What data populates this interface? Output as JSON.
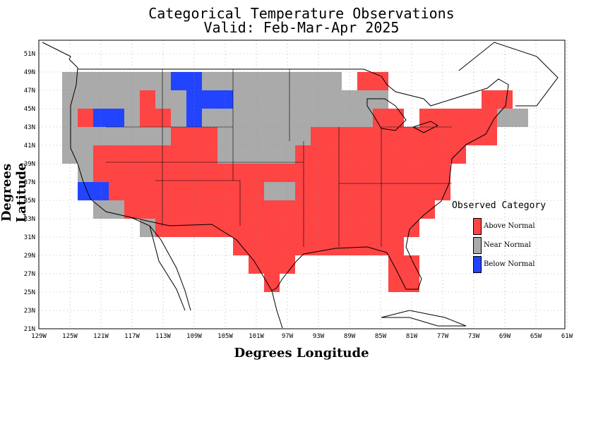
{
  "title": "Categorical Temperature Observations",
  "subtitle": "Valid: Feb-Mar-Apr 2025",
  "chart_data": {
    "type": "heatmap",
    "xlabel": "Degrees Longitude",
    "ylabel": "Degrees Latitude",
    "xlim": [
      -129,
      -61
    ],
    "ylim": [
      21,
      52
    ],
    "grid": true,
    "x_ticks": [
      "129W",
      "125W",
      "121W",
      "117W",
      "113W",
      "109W",
      "105W",
      "101W",
      "97W",
      "93W",
      "89W",
      "85W",
      "81W",
      "77W",
      "73W",
      "69W",
      "65W",
      "61W"
    ],
    "y_ticks": [
      "21N",
      "23N",
      "25N",
      "27N",
      "29N",
      "31N",
      "33N",
      "35N",
      "37N",
      "39N",
      "41N",
      "43N",
      "45N",
      "47N",
      "49N",
      "51N"
    ],
    "cell_size_deg": 2,
    "categories": [
      {
        "code": "A",
        "name": "Above Normal",
        "color": "#ff4444"
      },
      {
        "code": "N",
        "name": "Near Normal",
        "color": "#aaaaaa"
      },
      {
        "code": "B",
        "name": "Below Normal",
        "color": "#2244ff"
      }
    ],
    "cells": [
      {
        "lon": -125,
        "lat": 48,
        "cat": "N"
      },
      {
        "lon": -123,
        "lat": 48,
        "cat": "N"
      },
      {
        "lon": -121,
        "lat": 48,
        "cat": "N"
      },
      {
        "lon": -119,
        "lat": 48,
        "cat": "N"
      },
      {
        "lon": -117,
        "lat": 48,
        "cat": "N"
      },
      {
        "lon": -115,
        "lat": 48,
        "cat": "N"
      },
      {
        "lon": -113,
        "lat": 48,
        "cat": "N"
      },
      {
        "lon": -111,
        "lat": 48,
        "cat": "B"
      },
      {
        "lon": -109,
        "lat": 48,
        "cat": "B"
      },
      {
        "lon": -107,
        "lat": 48,
        "cat": "N"
      },
      {
        "lon": -105,
        "lat": 48,
        "cat": "N"
      },
      {
        "lon": -103,
        "lat": 48,
        "cat": "N"
      },
      {
        "lon": -101,
        "lat": 48,
        "cat": "N"
      },
      {
        "lon": -99,
        "lat": 48,
        "cat": "N"
      },
      {
        "lon": -97,
        "lat": 48,
        "cat": "N"
      },
      {
        "lon": -95,
        "lat": 48,
        "cat": "N"
      },
      {
        "lon": -93,
        "lat": 48,
        "cat": "N"
      },
      {
        "lon": -91,
        "lat": 48,
        "cat": "N"
      },
      {
        "lon": -87,
        "lat": 48,
        "cat": "A"
      },
      {
        "lon": -85,
        "lat": 48,
        "cat": "A"
      },
      {
        "lon": -125,
        "lat": 46,
        "cat": "N"
      },
      {
        "lon": -123,
        "lat": 46,
        "cat": "N"
      },
      {
        "lon": -121,
        "lat": 46,
        "cat": "N"
      },
      {
        "lon": -119,
        "lat": 46,
        "cat": "N"
      },
      {
        "lon": -117,
        "lat": 46,
        "cat": "N"
      },
      {
        "lon": -115,
        "lat": 46,
        "cat": "A"
      },
      {
        "lon": -113,
        "lat": 46,
        "cat": "N"
      },
      {
        "lon": -111,
        "lat": 46,
        "cat": "N"
      },
      {
        "lon": -109,
        "lat": 46,
        "cat": "B"
      },
      {
        "lon": -107,
        "lat": 46,
        "cat": "B"
      },
      {
        "lon": -105,
        "lat": 46,
        "cat": "B"
      },
      {
        "lon": -103,
        "lat": 46,
        "cat": "N"
      },
      {
        "lon": -101,
        "lat": 46,
        "cat": "N"
      },
      {
        "lon": -99,
        "lat": 46,
        "cat": "N"
      },
      {
        "lon": -97,
        "lat": 46,
        "cat": "N"
      },
      {
        "lon": -95,
        "lat": 46,
        "cat": "N"
      },
      {
        "lon": -93,
        "lat": 46,
        "cat": "N"
      },
      {
        "lon": -91,
        "lat": 46,
        "cat": "N"
      },
      {
        "lon": -89,
        "lat": 46,
        "cat": "N"
      },
      {
        "lon": -87,
        "lat": 46,
        "cat": "N"
      },
      {
        "lon": -85,
        "lat": 46,
        "cat": "N"
      },
      {
        "lon": -71,
        "lat": 46,
        "cat": "A"
      },
      {
        "lon": -69,
        "lat": 46,
        "cat": "A"
      },
      {
        "lon": -125,
        "lat": 44,
        "cat": "N"
      },
      {
        "lon": -123,
        "lat": 44,
        "cat": "A"
      },
      {
        "lon": -121,
        "lat": 44,
        "cat": "B"
      },
      {
        "lon": -119,
        "lat": 44,
        "cat": "B"
      },
      {
        "lon": -117,
        "lat": 44,
        "cat": "N"
      },
      {
        "lon": -115,
        "lat": 44,
        "cat": "A"
      },
      {
        "lon": -113,
        "lat": 44,
        "cat": "A"
      },
      {
        "lon": -111,
        "lat": 44,
        "cat": "N"
      },
      {
        "lon": -109,
        "lat": 44,
        "cat": "B"
      },
      {
        "lon": -107,
        "lat": 44,
        "cat": "N"
      },
      {
        "lon": -105,
        "lat": 44,
        "cat": "N"
      },
      {
        "lon": -103,
        "lat": 44,
        "cat": "N"
      },
      {
        "lon": -101,
        "lat": 44,
        "cat": "N"
      },
      {
        "lon": -99,
        "lat": 44,
        "cat": "N"
      },
      {
        "lon": -97,
        "lat": 44,
        "cat": "N"
      },
      {
        "lon": -95,
        "lat": 44,
        "cat": "N"
      },
      {
        "lon": -93,
        "lat": 44,
        "cat": "N"
      },
      {
        "lon": -91,
        "lat": 44,
        "cat": "N"
      },
      {
        "lon": -89,
        "lat": 44,
        "cat": "N"
      },
      {
        "lon": -87,
        "lat": 44,
        "cat": "N"
      },
      {
        "lon": -85,
        "lat": 44,
        "cat": "A"
      },
      {
        "lon": -83,
        "lat": 44,
        "cat": "A"
      },
      {
        "lon": -79,
        "lat": 44,
        "cat": "A"
      },
      {
        "lon": -77,
        "lat": 44,
        "cat": "A"
      },
      {
        "lon": -75,
        "lat": 44,
        "cat": "A"
      },
      {
        "lon": -73,
        "lat": 44,
        "cat": "A"
      },
      {
        "lon": -71,
        "lat": 44,
        "cat": "A"
      },
      {
        "lon": -69,
        "lat": 44,
        "cat": "N"
      },
      {
        "lon": -67,
        "lat": 44,
        "cat": "N"
      },
      {
        "lon": -125,
        "lat": 42,
        "cat": "N"
      },
      {
        "lon": -123,
        "lat": 42,
        "cat": "N"
      },
      {
        "lon": -121,
        "lat": 42,
        "cat": "N"
      },
      {
        "lon": -119,
        "lat": 42,
        "cat": "N"
      },
      {
        "lon": -117,
        "lat": 42,
        "cat": "N"
      },
      {
        "lon": -115,
        "lat": 42,
        "cat": "N"
      },
      {
        "lon": -113,
        "lat": 42,
        "cat": "N"
      },
      {
        "lon": -111,
        "lat": 42,
        "cat": "A"
      },
      {
        "lon": -109,
        "lat": 42,
        "cat": "A"
      },
      {
        "lon": -107,
        "lat": 42,
        "cat": "A"
      },
      {
        "lon": -105,
        "lat": 42,
        "cat": "N"
      },
      {
        "lon": -103,
        "lat": 42,
        "cat": "N"
      },
      {
        "lon": -101,
        "lat": 42,
        "cat": "N"
      },
      {
        "lon": -99,
        "lat": 42,
        "cat": "N"
      },
      {
        "lon": -97,
        "lat": 42,
        "cat": "N"
      },
      {
        "lon": -95,
        "lat": 42,
        "cat": "N"
      },
      {
        "lon": -93,
        "lat": 42,
        "cat": "A"
      },
      {
        "lon": -91,
        "lat": 42,
        "cat": "A"
      },
      {
        "lon": -89,
        "lat": 42,
        "cat": "A"
      },
      {
        "lon": -87,
        "lat": 42,
        "cat": "A"
      },
      {
        "lon": -85,
        "lat": 42,
        "cat": "A"
      },
      {
        "lon": -83,
        "lat": 42,
        "cat": "A"
      },
      {
        "lon": -81,
        "lat": 42,
        "cat": "A"
      },
      {
        "lon": -79,
        "lat": 42,
        "cat": "A"
      },
      {
        "lon": -77,
        "lat": 42,
        "cat": "A"
      },
      {
        "lon": -75,
        "lat": 42,
        "cat": "A"
      },
      {
        "lon": -73,
        "lat": 42,
        "cat": "A"
      },
      {
        "lon": -71,
        "lat": 42,
        "cat": "A"
      },
      {
        "lon": -125,
        "lat": 40,
        "cat": "N"
      },
      {
        "lon": -123,
        "lat": 40,
        "cat": "N"
      },
      {
        "lon": -121,
        "lat": 40,
        "cat": "A"
      },
      {
        "lon": -119,
        "lat": 40,
        "cat": "A"
      },
      {
        "lon": -117,
        "lat": 40,
        "cat": "A"
      },
      {
        "lon": -115,
        "lat": 40,
        "cat": "A"
      },
      {
        "lon": -113,
        "lat": 40,
        "cat": "A"
      },
      {
        "lon": -111,
        "lat": 40,
        "cat": "A"
      },
      {
        "lon": -109,
        "lat": 40,
        "cat": "A"
      },
      {
        "lon": -107,
        "lat": 40,
        "cat": "A"
      },
      {
        "lon": -105,
        "lat": 40,
        "cat": "N"
      },
      {
        "lon": -103,
        "lat": 40,
        "cat": "N"
      },
      {
        "lon": -101,
        "lat": 40,
        "cat": "N"
      },
      {
        "lon": -99,
        "lat": 40,
        "cat": "N"
      },
      {
        "lon": -97,
        "lat": 40,
        "cat": "N"
      },
      {
        "lon": -95,
        "lat": 40,
        "cat": "A"
      },
      {
        "lon": -93,
        "lat": 40,
        "cat": "A"
      },
      {
        "lon": -91,
        "lat": 40,
        "cat": "A"
      },
      {
        "lon": -89,
        "lat": 40,
        "cat": "A"
      },
      {
        "lon": -87,
        "lat": 40,
        "cat": "A"
      },
      {
        "lon": -85,
        "lat": 40,
        "cat": "A"
      },
      {
        "lon": -83,
        "lat": 40,
        "cat": "A"
      },
      {
        "lon": -81,
        "lat": 40,
        "cat": "A"
      },
      {
        "lon": -79,
        "lat": 40,
        "cat": "A"
      },
      {
        "lon": -77,
        "lat": 40,
        "cat": "A"
      },
      {
        "lon": -75,
        "lat": 40,
        "cat": "A"
      },
      {
        "lon": -123,
        "lat": 38,
        "cat": "N"
      },
      {
        "lon": -121,
        "lat": 38,
        "cat": "A"
      },
      {
        "lon": -119,
        "lat": 38,
        "cat": "A"
      },
      {
        "lon": -117,
        "lat": 38,
        "cat": "A"
      },
      {
        "lon": -115,
        "lat": 38,
        "cat": "A"
      },
      {
        "lon": -113,
        "lat": 38,
        "cat": "A"
      },
      {
        "lon": -111,
        "lat": 38,
        "cat": "A"
      },
      {
        "lon": -109,
        "lat": 38,
        "cat": "A"
      },
      {
        "lon": -107,
        "lat": 38,
        "cat": "A"
      },
      {
        "lon": -105,
        "lat": 38,
        "cat": "A"
      },
      {
        "lon": -103,
        "lat": 38,
        "cat": "A"
      },
      {
        "lon": -101,
        "lat": 38,
        "cat": "A"
      },
      {
        "lon": -99,
        "lat": 38,
        "cat": "A"
      },
      {
        "lon": -97,
        "lat": 38,
        "cat": "A"
      },
      {
        "lon": -95,
        "lat": 38,
        "cat": "A"
      },
      {
        "lon": -93,
        "lat": 38,
        "cat": "A"
      },
      {
        "lon": -91,
        "lat": 38,
        "cat": "A"
      },
      {
        "lon": -89,
        "lat": 38,
        "cat": "A"
      },
      {
        "lon": -87,
        "lat": 38,
        "cat": "A"
      },
      {
        "lon": -85,
        "lat": 38,
        "cat": "A"
      },
      {
        "lon": -83,
        "lat": 38,
        "cat": "A"
      },
      {
        "lon": -81,
        "lat": 38,
        "cat": "A"
      },
      {
        "lon": -79,
        "lat": 38,
        "cat": "A"
      },
      {
        "lon": -77,
        "lat": 38,
        "cat": "A"
      },
      {
        "lon": -123,
        "lat": 36,
        "cat": "B"
      },
      {
        "lon": -121,
        "lat": 36,
        "cat": "B"
      },
      {
        "lon": -119,
        "lat": 36,
        "cat": "A"
      },
      {
        "lon": -117,
        "lat": 36,
        "cat": "A"
      },
      {
        "lon": -115,
        "lat": 36,
        "cat": "A"
      },
      {
        "lon": -113,
        "lat": 36,
        "cat": "A"
      },
      {
        "lon": -111,
        "lat": 36,
        "cat": "A"
      },
      {
        "lon": -109,
        "lat": 36,
        "cat": "A"
      },
      {
        "lon": -107,
        "lat": 36,
        "cat": "A"
      },
      {
        "lon": -105,
        "lat": 36,
        "cat": "A"
      },
      {
        "lon": -103,
        "lat": 36,
        "cat": "A"
      },
      {
        "lon": -101,
        "lat": 36,
        "cat": "A"
      },
      {
        "lon": -99,
        "lat": 36,
        "cat": "N"
      },
      {
        "lon": -97,
        "lat": 36,
        "cat": "N"
      },
      {
        "lon": -95,
        "lat": 36,
        "cat": "A"
      },
      {
        "lon": -93,
        "lat": 36,
        "cat": "A"
      },
      {
        "lon": -91,
        "lat": 36,
        "cat": "A"
      },
      {
        "lon": -89,
        "lat": 36,
        "cat": "A"
      },
      {
        "lon": -87,
        "lat": 36,
        "cat": "A"
      },
      {
        "lon": -85,
        "lat": 36,
        "cat": "A"
      },
      {
        "lon": -83,
        "lat": 36,
        "cat": "A"
      },
      {
        "lon": -81,
        "lat": 36,
        "cat": "A"
      },
      {
        "lon": -79,
        "lat": 36,
        "cat": "A"
      },
      {
        "lon": -77,
        "lat": 36,
        "cat": "A"
      },
      {
        "lon": -121,
        "lat": 34,
        "cat": "N"
      },
      {
        "lon": -119,
        "lat": 34,
        "cat": "N"
      },
      {
        "lon": -117,
        "lat": 34,
        "cat": "A"
      },
      {
        "lon": -115,
        "lat": 34,
        "cat": "A"
      },
      {
        "lon": -113,
        "lat": 34,
        "cat": "A"
      },
      {
        "lon": -111,
        "lat": 34,
        "cat": "A"
      },
      {
        "lon": -109,
        "lat": 34,
        "cat": "A"
      },
      {
        "lon": -107,
        "lat": 34,
        "cat": "A"
      },
      {
        "lon": -105,
        "lat": 34,
        "cat": "A"
      },
      {
        "lon": -103,
        "lat": 34,
        "cat": "A"
      },
      {
        "lon": -101,
        "lat": 34,
        "cat": "A"
      },
      {
        "lon": -99,
        "lat": 34,
        "cat": "A"
      },
      {
        "lon": -97,
        "lat": 34,
        "cat": "A"
      },
      {
        "lon": -95,
        "lat": 34,
        "cat": "A"
      },
      {
        "lon": -93,
        "lat": 34,
        "cat": "A"
      },
      {
        "lon": -91,
        "lat": 34,
        "cat": "A"
      },
      {
        "lon": -89,
        "lat": 34,
        "cat": "A"
      },
      {
        "lon": -87,
        "lat": 34,
        "cat": "A"
      },
      {
        "lon": -85,
        "lat": 34,
        "cat": "A"
      },
      {
        "lon": -83,
        "lat": 34,
        "cat": "A"
      },
      {
        "lon": -81,
        "lat": 34,
        "cat": "A"
      },
      {
        "lon": -79,
        "lat": 34,
        "cat": "A"
      },
      {
        "lon": -115,
        "lat": 32,
        "cat": "N"
      },
      {
        "lon": -113,
        "lat": 32,
        "cat": "A"
      },
      {
        "lon": -111,
        "lat": 32,
        "cat": "A"
      },
      {
        "lon": -109,
        "lat": 32,
        "cat": "A"
      },
      {
        "lon": -107,
        "lat": 32,
        "cat": "A"
      },
      {
        "lon": -105,
        "lat": 32,
        "cat": "A"
      },
      {
        "lon": -103,
        "lat": 32,
        "cat": "A"
      },
      {
        "lon": -101,
        "lat": 32,
        "cat": "A"
      },
      {
        "lon": -99,
        "lat": 32,
        "cat": "A"
      },
      {
        "lon": -97,
        "lat": 32,
        "cat": "A"
      },
      {
        "lon": -95,
        "lat": 32,
        "cat": "A"
      },
      {
        "lon": -93,
        "lat": 32,
        "cat": "A"
      },
      {
        "lon": -91,
        "lat": 32,
        "cat": "A"
      },
      {
        "lon": -89,
        "lat": 32,
        "cat": "A"
      },
      {
        "lon": -87,
        "lat": 32,
        "cat": "A"
      },
      {
        "lon": -85,
        "lat": 32,
        "cat": "A"
      },
      {
        "lon": -83,
        "lat": 32,
        "cat": "A"
      },
      {
        "lon": -81,
        "lat": 32,
        "cat": "A"
      },
      {
        "lon": -103,
        "lat": 30,
        "cat": "A"
      },
      {
        "lon": -101,
        "lat": 30,
        "cat": "A"
      },
      {
        "lon": -99,
        "lat": 30,
        "cat": "A"
      },
      {
        "lon": -97,
        "lat": 30,
        "cat": "A"
      },
      {
        "lon": -95,
        "lat": 30,
        "cat": "A"
      },
      {
        "lon": -93,
        "lat": 30,
        "cat": "A"
      },
      {
        "lon": -91,
        "lat": 30,
        "cat": "A"
      },
      {
        "lon": -89,
        "lat": 30,
        "cat": "A"
      },
      {
        "lon": -87,
        "lat": 30,
        "cat": "A"
      },
      {
        "lon": -85,
        "lat": 30,
        "cat": "A"
      },
      {
        "lon": -83,
        "lat": 30,
        "cat": "A"
      },
      {
        "lon": -101,
        "lat": 28,
        "cat": "A"
      },
      {
        "lon": -99,
        "lat": 28,
        "cat": "A"
      },
      {
        "lon": -97,
        "lat": 28,
        "cat": "A"
      },
      {
        "lon": -83,
        "lat": 28,
        "cat": "A"
      },
      {
        "lon": -81,
        "lat": 28,
        "cat": "A"
      },
      {
        "lon": -99,
        "lat": 26,
        "cat": "A"
      },
      {
        "lon": -83,
        "lat": 26,
        "cat": "A"
      },
      {
        "lon": -81,
        "lat": 26,
        "cat": "A"
      }
    ],
    "legend": {
      "title": "Observed Category",
      "placement": "right"
    }
  }
}
